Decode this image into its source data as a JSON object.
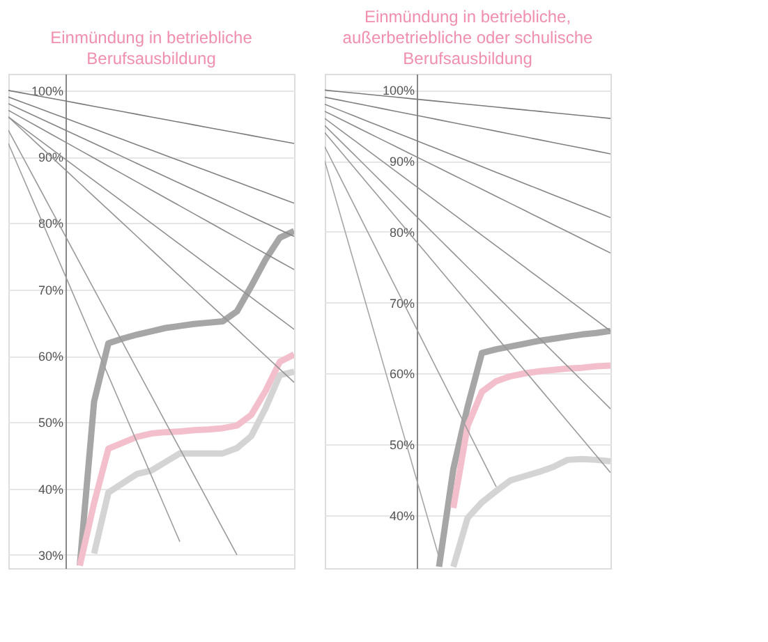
{
  "chart_data": [
    {
      "type": "line",
      "title": "Einmündung in betriebliche\nBerufsausbildung",
      "ylim": [
        28,
        102.5
      ],
      "tick_labels": "y",
      "grid": "y",
      "legend": false,
      "marker": "none",
      "categories": [
        null,
        null,
        null,
        null,
        null,
        null,
        null,
        null,
        null,
        null,
        null,
        null,
        null,
        null,
        null,
        null,
        null,
        null,
        null,
        null,
        null
      ],
      "yticks": [
        {
          "value": 30,
          "label": "30%"
        },
        {
          "value": 40,
          "label": "40%"
        },
        {
          "value": 50,
          "label": "50%"
        },
        {
          "value": 60,
          "label": "60%"
        },
        {
          "value": 70,
          "label": "70%"
        },
        {
          "value": 80,
          "label": "80%"
        },
        {
          "value": 90,
          "label": "90%"
        },
        {
          "value": 100,
          "label": "100%"
        }
      ],
      "series": [
        {
          "color": "#a6a6a6",
          "values": [
            null,
            null,
            null,
            null,
            null,
            28.4,
            53.1,
            61.9,
            62.6,
            63.2,
            63.7,
            64.2,
            64.5,
            64.8,
            65.0,
            65.2,
            66.7,
            70.5,
            74.5,
            77.8,
            78.8
          ]
        },
        {
          "color": "#f4bfcc",
          "values": [
            null,
            null,
            null,
            null,
            null,
            28.4,
            37.8,
            46.0,
            46.9,
            47.8,
            48.3,
            48.5,
            48.6,
            48.8,
            48.9,
            49.1,
            49.5,
            51.1,
            54.7,
            59.1,
            60.2
          ]
        },
        {
          "color": "#d4d4d4",
          "values": [
            null,
            null,
            null,
            null,
            null,
            null,
            30.2,
            39.4,
            40.8,
            42.2,
            42.7,
            44.0,
            45.3,
            45.3,
            45.3,
            45.3,
            46.1,
            47.9,
            52.1,
            57.1,
            57.6
          ]
        },
        {
          "color": "#7a7a7a",
          "values": [
            100,
            99.6,
            99.2,
            98.8,
            98.4,
            98,
            97.6,
            97.2,
            96.8,
            96.4,
            96,
            95.6,
            95.2,
            94.8,
            94.4,
            94,
            93.6,
            93.2,
            92.8,
            92.4,
            92
          ]
        },
        {
          "color": "#808080",
          "values": [
            99,
            98.2,
            97.4,
            96.6,
            95.8,
            95,
            94.2,
            93.4,
            92.6,
            91.8,
            91,
            90.2,
            89.4,
            88.6,
            87.8,
            87,
            86.2,
            85.4,
            84.6,
            83.8,
            83
          ]
        },
        {
          "color": "#858585",
          "values": [
            98,
            97,
            96,
            95,
            94,
            93,
            92,
            91,
            90,
            89,
            88,
            87,
            86,
            85,
            84,
            83,
            82,
            81,
            80,
            79,
            78
          ]
        },
        {
          "color": "#8a8a8a",
          "values": [
            97,
            95.8,
            94.6,
            93.4,
            92.2,
            91,
            89.8,
            88.6,
            87.4,
            86.2,
            85,
            83.8,
            82.6,
            81.4,
            80.2,
            79,
            77.8,
            76.6,
            75.4,
            74.2,
            73
          ]
        },
        {
          "color": "#8f8f8f",
          "values": [
            96,
            94.4,
            92.8,
            91.2,
            89.6,
            88,
            86.4,
            84.8,
            83.2,
            81.6,
            80,
            78.4,
            76.8,
            75.2,
            73.6,
            72,
            70.4,
            68.8,
            67.2,
            65.6,
            64
          ]
        },
        {
          "color": "#949494",
          "values": [
            96,
            94,
            92,
            90,
            88,
            86,
            84,
            82,
            80,
            78,
            76,
            74,
            72,
            70,
            68,
            66,
            64,
            62,
            60,
            58,
            56
          ]
        },
        {
          "color": "#999999",
          "values": [
            94,
            90,
            86,
            82,
            78,
            74,
            70,
            66,
            62,
            58,
            54,
            50,
            46,
            42,
            38,
            34,
            30,
            null,
            null,
            null,
            null
          ]
        },
        {
          "color": "#9e9e9e",
          "values": [
            92,
            87,
            82,
            77,
            72,
            67,
            62,
            57,
            52,
            47,
            42,
            37,
            32,
            null,
            null,
            null,
            null,
            null,
            null,
            null,
            null
          ]
        }
      ]
    },
    {
      "type": "line",
      "title": "Einmündung in betriebliche,\naußerbetriebliche oder schulische\nBerufsausbildung",
      "ylim": [
        32.5,
        102.3
      ],
      "tick_labels": "y",
      "grid": "y",
      "legend": false,
      "marker": "none",
      "categories": [
        null,
        null,
        null,
        null,
        null,
        null,
        null,
        null,
        null,
        null,
        null,
        null,
        null,
        null,
        null,
        null,
        null,
        null,
        null,
        null,
        null
      ],
      "yticks": [
        {
          "value": 40,
          "label": "40%"
        },
        {
          "value": 50,
          "label": "50%"
        },
        {
          "value": 60,
          "label": "60%"
        },
        {
          "value": 70,
          "label": "70%"
        },
        {
          "value": 80,
          "label": "80%"
        },
        {
          "value": 90,
          "label": "90%"
        },
        {
          "value": 100,
          "label": "100%"
        }
      ],
      "series": [
        {
          "color": "#a6a6a6",
          "values": [
            null,
            null,
            null,
            null,
            null,
            null,
            null,
            null,
            32.7,
            46.5,
            55.3,
            62.9,
            63.4,
            63.8,
            64.2,
            64.6,
            64.9,
            65.2,
            65.5,
            65.7,
            66.0
          ]
        },
        {
          "color": "#f4bfcc",
          "values": [
            null,
            null,
            null,
            null,
            null,
            null,
            null,
            null,
            null,
            41.0,
            52.6,
            57.4,
            58.9,
            59.6,
            60.0,
            60.3,
            60.5,
            60.7,
            60.8,
            61.0,
            61.1
          ]
        },
        {
          "color": "#d4d4d4",
          "values": [
            null,
            null,
            null,
            null,
            null,
            null,
            null,
            null,
            null,
            32.7,
            39.6,
            41.8,
            43.4,
            44.9,
            45.5,
            46.1,
            46.8,
            47.8,
            47.9,
            47.8,
            47.6
          ]
        },
        {
          "color": "#7a7a7a",
          "values": [
            100,
            99.8,
            99.6,
            99.4,
            99.2,
            99,
            98.8,
            98.6,
            98.4,
            98.2,
            98,
            97.8,
            97.6,
            97.4,
            97.2,
            97,
            96.8,
            96.6,
            96.4,
            96.2,
            96
          ]
        },
        {
          "color": "#808080",
          "values": [
            99,
            98.6,
            98.2,
            97.8,
            97.4,
            97,
            96.6,
            96.2,
            95.8,
            95.4,
            95,
            94.6,
            94.2,
            93.8,
            93.4,
            93,
            92.6,
            92.2,
            91.8,
            91.4,
            91
          ]
        },
        {
          "color": "#858585",
          "values": [
            98,
            97.2,
            96.4,
            95.6,
            94.8,
            94,
            93.2,
            92.4,
            91.6,
            90.8,
            90,
            89.2,
            88.4,
            87.6,
            86.8,
            86,
            85.2,
            84.4,
            83.6,
            82.8,
            82
          ]
        },
        {
          "color": "#8a8a8a",
          "values": [
            97,
            96,
            95,
            94,
            93,
            92,
            91,
            90,
            89,
            88,
            87,
            86,
            85,
            84,
            83,
            82,
            81,
            80,
            79,
            78,
            77
          ]
        },
        {
          "color": "#8f8f8f",
          "values": [
            96,
            94.5,
            93,
            91.5,
            90,
            88.5,
            87,
            85.5,
            84,
            82.5,
            81,
            79.5,
            78,
            76.5,
            75,
            73.5,
            72,
            70.5,
            69,
            67.5,
            66
          ]
        },
        {
          "color": "#949494",
          "values": [
            95,
            93,
            91,
            89,
            87,
            85,
            83,
            81,
            79,
            77,
            75,
            73,
            71,
            69,
            67,
            65,
            63,
            61,
            59,
            57,
            55
          ]
        },
        {
          "color": "#999999",
          "values": [
            94,
            91.6,
            89.2,
            86.8,
            84.4,
            82,
            79.6,
            77.2,
            74.8,
            72.4,
            70,
            67.6,
            65.2,
            62.8,
            60.4,
            58,
            55.6,
            53.2,
            50.8,
            48.4,
            46
          ]
        },
        {
          "color": "#9e9e9e",
          "values": [
            92,
            88,
            84,
            80,
            76,
            72,
            68,
            64,
            60,
            56,
            52,
            48,
            44,
            null,
            null,
            null,
            null,
            null,
            null,
            null,
            null
          ]
        },
        {
          "color": "#a3a3a3",
          "values": [
            90,
            83,
            76,
            69,
            62,
            55,
            48,
            41,
            34,
            null,
            null,
            null,
            null,
            null,
            null,
            null,
            null,
            null,
            null,
            null,
            null
          ]
        }
      ]
    }
  ]
}
